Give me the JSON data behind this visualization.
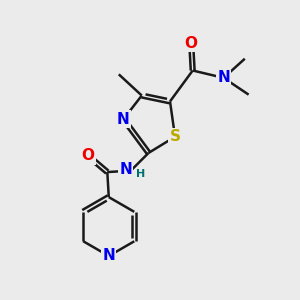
{
  "bg_color": "#ebebeb",
  "bond_color": "#1a1a1a",
  "bond_width": 1.8,
  "atom_colors": {
    "N": "#0000ee",
    "O": "#ee0000",
    "S": "#bbaa00",
    "C": "#1a1a1a",
    "H": "#007070"
  },
  "font_size": 10,
  "font_size_small": 8
}
